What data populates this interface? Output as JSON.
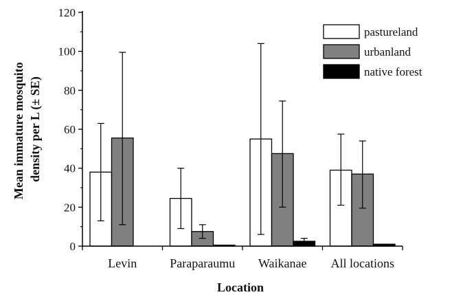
{
  "chart_data": {
    "type": "bar",
    "categories": [
      "Levin",
      "Paraparaumu",
      "Waikanae",
      "All locations"
    ],
    "xlabel": "Location",
    "ylabel": [
      "Mean immature mosquito",
      "density per L (± SE)"
    ],
    "ylim": [
      0,
      120
    ],
    "yticks": [
      0,
      20,
      40,
      60,
      80,
      100,
      120
    ],
    "legend_position": "top-right",
    "series": [
      {
        "name": "pastureland",
        "color": "#ffffff",
        "values": [
          38,
          24.5,
          55,
          39
        ],
        "error_low": [
          13,
          9,
          6,
          21
        ],
        "error_high": [
          63,
          40,
          104,
          57.5
        ]
      },
      {
        "name": "urbanland",
        "color": "#808080",
        "values": [
          55.5,
          7.5,
          47.5,
          37
        ],
        "error_low": [
          11,
          4,
          20,
          19.5
        ],
        "error_high": [
          99.5,
          11,
          74.5,
          54
        ]
      },
      {
        "name": "native forest",
        "color": "#000000",
        "values": [
          null,
          0.3,
          2.5,
          1
        ],
        "error_low": [
          null,
          0.3,
          1,
          1
        ],
        "error_high": [
          null,
          0.3,
          4,
          1
        ]
      }
    ]
  }
}
